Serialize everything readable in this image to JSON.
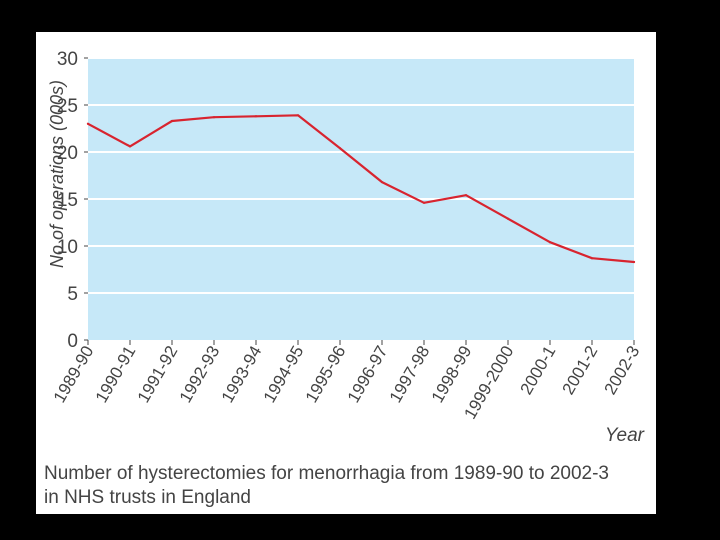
{
  "chart_data": {
    "type": "line",
    "title": "",
    "xlabel": "Year",
    "ylabel": "No of operations (000s)",
    "ylim": [
      0,
      30
    ],
    "yticks": [
      "0",
      "5",
      "10",
      "15",
      "20",
      "25",
      "30"
    ],
    "grid": true,
    "categories": [
      "1989-90",
      "1990-91",
      "1991-92",
      "1992-93",
      "1993-94",
      "1994-95",
      "1995-96",
      "1996-97",
      "1997-98",
      "1998-99",
      "1999-2000",
      "2000-1",
      "2001-2",
      "2002-3"
    ],
    "series": [
      {
        "name": "Hysterectomies for menorrhagia",
        "values": [
          23,
          20.6,
          23.3,
          23.7,
          23.8,
          23.9,
          20.4,
          16.8,
          14.6,
          15.4,
          12.9,
          10.4,
          8.7,
          8.3
        ]
      }
    ]
  },
  "caption": {
    "line1": "Number of hysterectomies for menorrhagia from 1989-90 to 2002-3",
    "line2": "in NHS trusts in England"
  },
  "colors": {
    "plot_background": "#c6e8f8",
    "gridline": "#ffffff",
    "series_line": "#d8242f",
    "text": "#444444"
  }
}
